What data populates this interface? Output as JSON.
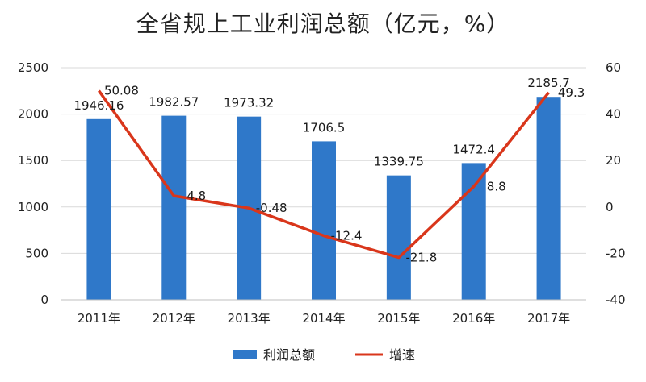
{
  "chart_data": {
    "type": "bar",
    "title": "全省规上工业利润总额（亿元，%）",
    "categories": [
      "2011年",
      "2012年",
      "2013年",
      "2014年",
      "2015年",
      "2016年",
      "2017年"
    ],
    "series": [
      {
        "name": "利润总额",
        "type": "bar",
        "axis": "left",
        "values": [
          1946.16,
          1982.57,
          1973.32,
          1706.5,
          1339.75,
          1472.4,
          2185.7
        ]
      },
      {
        "name": "增速",
        "type": "line",
        "axis": "right",
        "values": [
          50.08,
          4.8,
          -0.48,
          -12.4,
          -21.8,
          8.8,
          49.3
        ]
      }
    ],
    "ylim": [
      0,
      2500
    ],
    "y_ticks": [
      0,
      500,
      1000,
      1500,
      2000,
      2500
    ],
    "y2lim": [
      -40,
      60
    ],
    "y2_ticks": [
      -40,
      -20,
      0,
      20,
      40,
      60
    ],
    "grid": true,
    "legend_position": "bottom",
    "colors": {
      "bar": "#2f78c9",
      "line": "#d9361b",
      "grid": "#d9d9d9"
    }
  }
}
